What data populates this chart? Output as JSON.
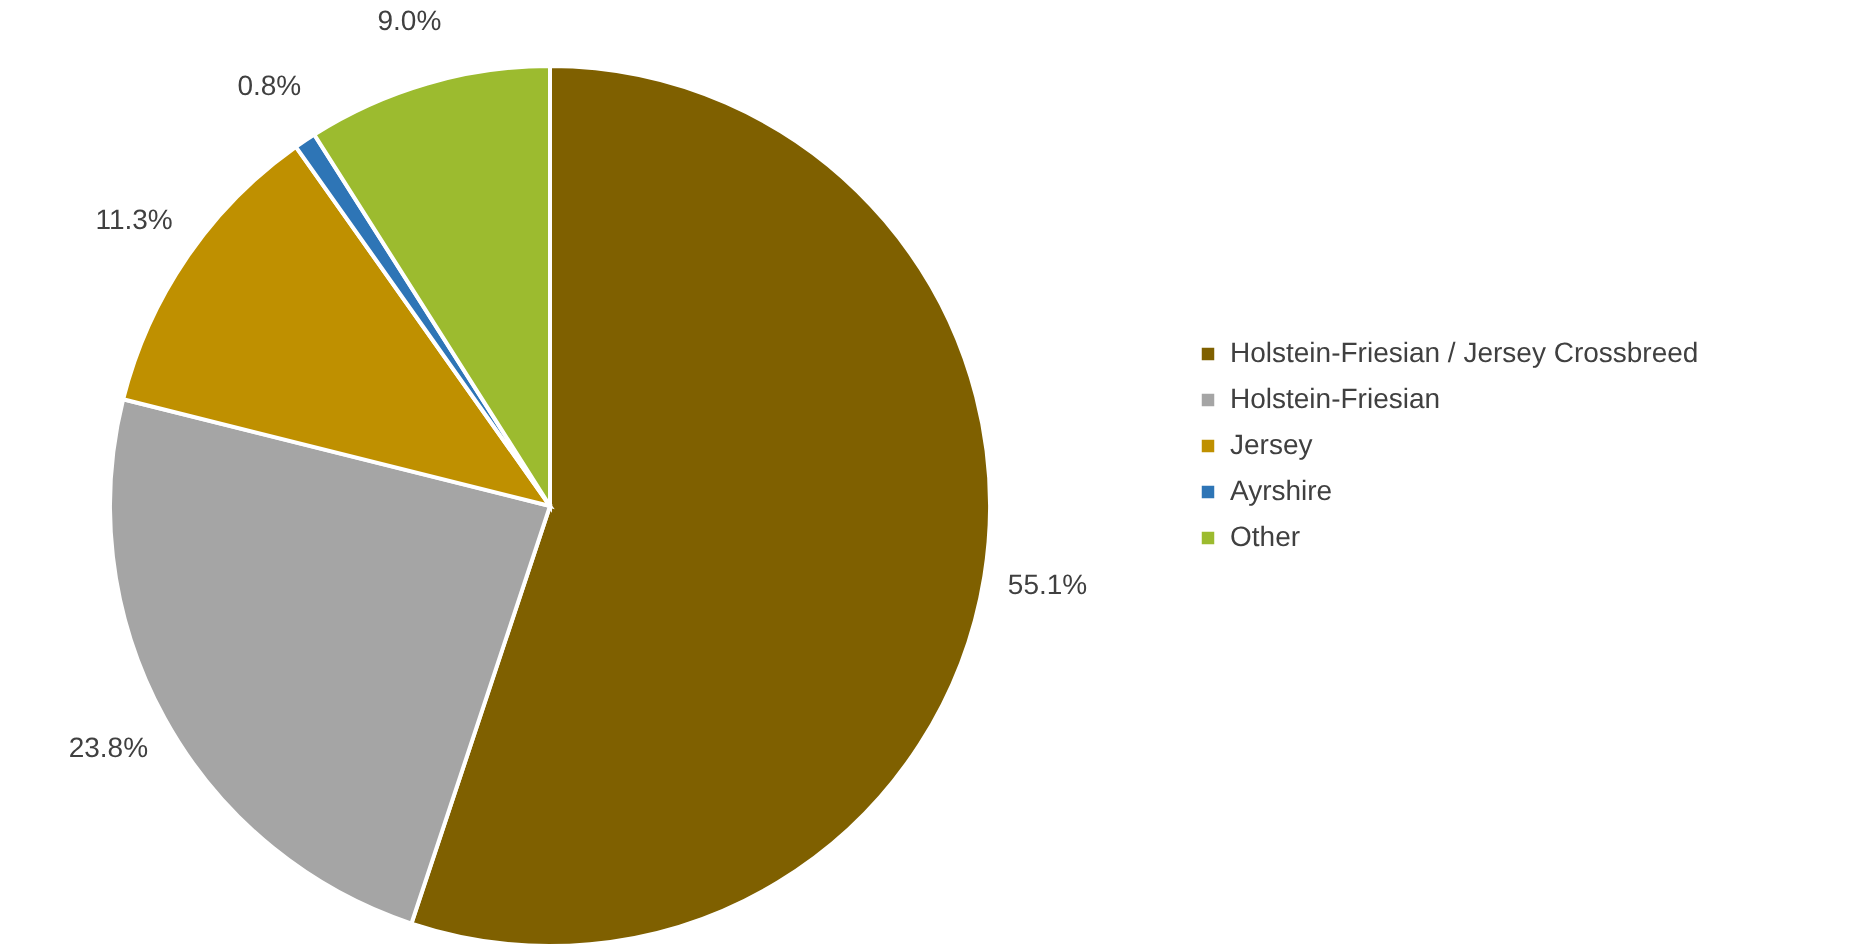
{
  "chart_data": {
    "type": "pie",
    "categories": [
      "Holstein-Friesian / Jersey Crossbreed",
      "Holstein-Friesian",
      "Jersey",
      "Ayrshire",
      "Other"
    ],
    "values": [
      55.1,
      23.8,
      11.3,
      0.8,
      9.0
    ],
    "colors": [
      "#7f6000",
      "#a5a5a5",
      "#bf9000",
      "#2e75b6",
      "#9cbb2f"
    ],
    "value_labels": [
      "55.1%",
      "23.8%",
      "11.3%",
      "0.8%",
      "9.0%"
    ],
    "legend": "right"
  }
}
